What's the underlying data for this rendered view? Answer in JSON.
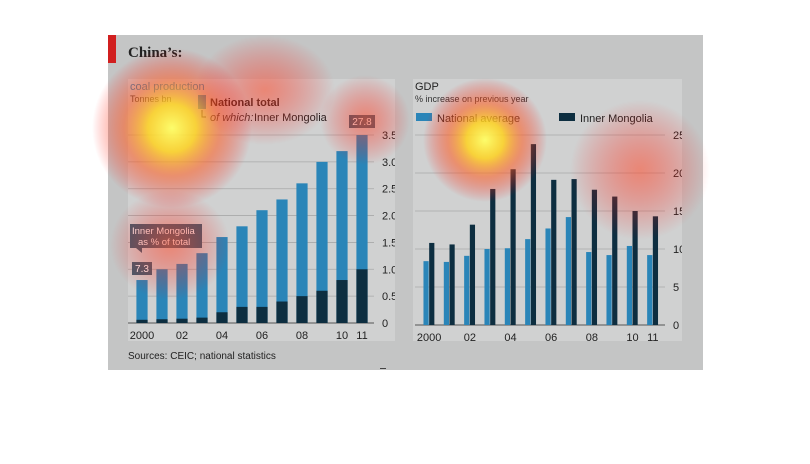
{
  "figure": {
    "title": "China’s:",
    "source": "Sources: CEIC; national statistics"
  },
  "chart_data": [
    {
      "type": "bar",
      "title": "coal production",
      "subtitle": "Tonnes bn",
      "categories": [
        "2000",
        "01",
        "02",
        "03",
        "04",
        "05",
        "06",
        "07",
        "08",
        "09",
        "10",
        "11"
      ],
      "tick_labels": [
        "2000",
        "02",
        "04",
        "06",
        "08",
        "10",
        "11"
      ],
      "series": [
        {
          "name": "National total",
          "values": [
            0.8,
            1.0,
            1.1,
            1.3,
            1.6,
            1.8,
            2.1,
            2.3,
            2.6,
            3.0,
            3.2,
            3.5
          ],
          "color": "#2a85b8"
        },
        {
          "name": "of which: Inner Mongolia",
          "values": [
            0.06,
            0.07,
            0.08,
            0.1,
            0.2,
            0.3,
            0.3,
            0.4,
            0.5,
            0.6,
            0.8,
            1.0
          ],
          "color": "#0d2e40"
        }
      ],
      "legend": {
        "label1": "National total",
        "label2_prefix": "of which:",
        "label2": "Inner Mongolia"
      },
      "annotations": {
        "first_value": "7.3",
        "last_value": "27.8",
        "callout": "Inner Mongolia as % of total"
      },
      "ylim": [
        0,
        3.5
      ],
      "y_ticks": [
        "0",
        "0.5",
        "1.0",
        "1.5",
        "2.0",
        "2.5",
        "3.0",
        "3.5"
      ],
      "grid": true,
      "legend_position": "top-left"
    },
    {
      "type": "bar",
      "title": "GDP",
      "subtitle": "% increase on previous year",
      "categories": [
        "2000",
        "01",
        "02",
        "03",
        "04",
        "05",
        "06",
        "07",
        "08",
        "09",
        "10",
        "11"
      ],
      "tick_labels": [
        "2000",
        "02",
        "04",
        "06",
        "08",
        "10",
        "11"
      ],
      "series": [
        {
          "name": "National average",
          "values": [
            8.4,
            8.3,
            9.1,
            10.0,
            10.1,
            11.3,
            12.7,
            14.2,
            9.6,
            9.2,
            10.4,
            9.2
          ],
          "color": "#2a85b8"
        },
        {
          "name": "Inner Mongolia",
          "values": [
            10.8,
            10.6,
            13.2,
            17.9,
            20.5,
            23.8,
            19.1,
            19.2,
            17.8,
            16.9,
            15.0,
            14.3
          ],
          "color": "#0d2e40"
        }
      ],
      "ylim": [
        0,
        25
      ],
      "y_ticks": [
        "0",
        "5",
        "10",
        "15",
        "20",
        "25"
      ],
      "grid": true,
      "legend_position": "top"
    }
  ]
}
